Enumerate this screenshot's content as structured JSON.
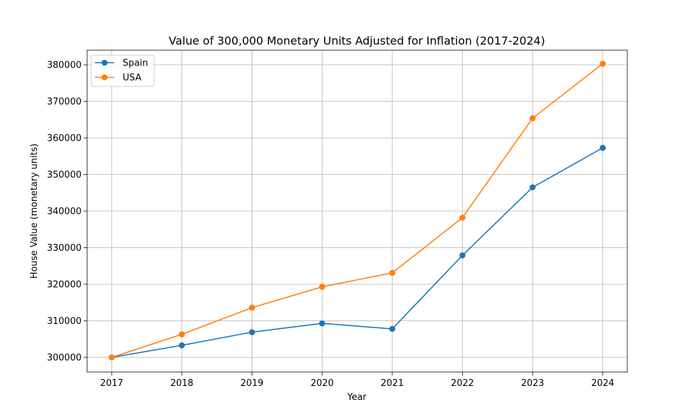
{
  "chart_data": {
    "type": "line",
    "title": "Value of 300,000 Monetary Units Adjusted for Inflation (2017-2024)",
    "xlabel": "Year",
    "ylabel": "House Value (monetary units)",
    "x": [
      2017,
      2018,
      2019,
      2020,
      2021,
      2022,
      2023,
      2024
    ],
    "xticks": [
      "2017",
      "2018",
      "2019",
      "2020",
      "2021",
      "2022",
      "2023",
      "2024"
    ],
    "yticks": [
      "300000",
      "310000",
      "320000",
      "330000",
      "340000",
      "350000",
      "360000",
      "370000",
      "380000"
    ],
    "ylim": [
      296000,
      384000
    ],
    "xlim": [
      2016.65,
      2024.35
    ],
    "grid": true,
    "legend_position": "top-left",
    "series": [
      {
        "name": "Spain",
        "color": "#1f77b4",
        "values": [
          300000,
          303300,
          306900,
          309300,
          307800,
          327900,
          346500,
          357300
        ]
      },
      {
        "name": "USA",
        "color": "#ff7f0e",
        "values": [
          300000,
          306300,
          313600,
          319300,
          323100,
          338200,
          365400,
          380300
        ]
      }
    ]
  }
}
